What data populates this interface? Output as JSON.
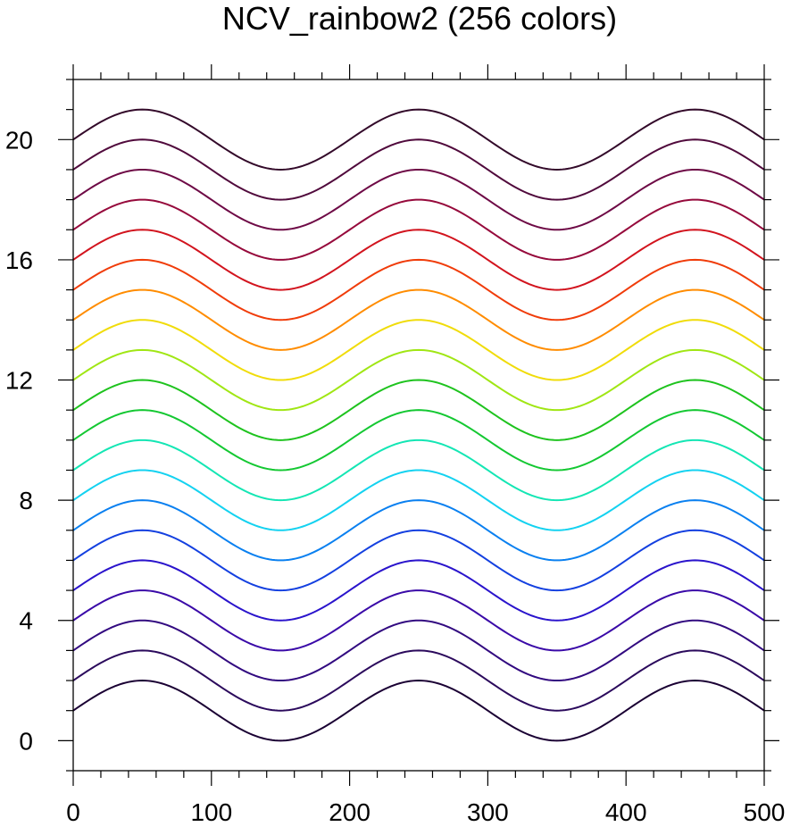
{
  "chart_data": {
    "type": "line",
    "title": "NCV_rainbow2 (256 colors)",
    "xlabel": "",
    "ylabel": "",
    "xlim": [
      0,
      500
    ],
    "ylim": [
      -1,
      22
    ],
    "x_major_ticks": [
      0,
      100,
      200,
      300,
      400,
      500
    ],
    "x_tick_labels": [
      "0",
      "100",
      "200",
      "300",
      "400",
      "500"
    ],
    "x_minor_step": 20,
    "y_major_ticks": [
      0,
      4,
      8,
      12,
      16,
      20
    ],
    "y_tick_labels": [
      "0",
      "4",
      "8",
      "12",
      "16",
      "20"
    ],
    "y_minor_step": 1,
    "grid": false,
    "curve_formula": "y = offset + sin(2*pi*x/200)",
    "x_sample": [
      0,
      25,
      50,
      75,
      100,
      125,
      150,
      175,
      200,
      225,
      250,
      275,
      300,
      325,
      350,
      375,
      400,
      425,
      450,
      475,
      500
    ],
    "series": [
      {
        "offset": 1,
        "color": "#1a0033",
        "values": [
          1,
          1.71,
          2,
          1.71,
          1,
          0.29,
          0,
          0.29,
          1,
          1.71,
          2,
          1.71,
          1,
          0.29,
          0,
          0.29,
          1,
          1.71,
          2,
          1.71,
          1
        ]
      },
      {
        "offset": 2,
        "color": "#2b0a5c",
        "values": [
          2,
          2.71,
          3,
          2.71,
          2,
          1.29,
          1,
          1.29,
          2,
          2.71,
          3,
          2.71,
          2,
          1.29,
          1,
          1.29,
          2,
          2.71,
          3,
          2.71,
          2
        ]
      },
      {
        "offset": 3,
        "color": "#320a80",
        "values": [
          3,
          3.71,
          4,
          3.71,
          3,
          2.29,
          2,
          2.29,
          3,
          3.71,
          4,
          3.71,
          3,
          2.29,
          2,
          2.29,
          3,
          3.71,
          4,
          3.71,
          3
        ]
      },
      {
        "offset": 4,
        "color": "#3a0aa8",
        "values": [
          4,
          4.71,
          5,
          4.71,
          4,
          3.29,
          3,
          3.29,
          4,
          4.71,
          5,
          4.71,
          4,
          3.29,
          3,
          3.29,
          4,
          4.71,
          5,
          4.71,
          4
        ]
      },
      {
        "offset": 5,
        "color": "#2a14cc",
        "values": [
          5,
          5.71,
          6,
          5.71,
          5,
          4.29,
          4,
          4.29,
          5,
          5.71,
          6,
          5.71,
          5,
          4.29,
          4,
          4.29,
          5,
          5.71,
          6,
          5.71,
          5
        ]
      },
      {
        "offset": 6,
        "color": "#1440e0",
        "values": [
          6,
          6.71,
          7,
          6.71,
          6,
          5.29,
          5,
          5.29,
          6,
          6.71,
          7,
          6.71,
          6,
          5.29,
          5,
          5.29,
          6,
          6.71,
          7,
          6.71,
          6
        ]
      },
      {
        "offset": 7,
        "color": "#0a80f0",
        "values": [
          7,
          7.71,
          8,
          7.71,
          7,
          6.29,
          6,
          6.29,
          7,
          7.71,
          8,
          7.71,
          7,
          6.29,
          6,
          6.29,
          7,
          7.71,
          8,
          7.71,
          7
        ]
      },
      {
        "offset": 8,
        "color": "#14d2f0",
        "values": [
          8,
          8.71,
          9,
          8.71,
          8,
          7.29,
          7,
          7.29,
          8,
          8.71,
          9,
          8.71,
          8,
          7.29,
          7,
          7.29,
          8,
          8.71,
          9,
          8.71,
          8
        ]
      },
      {
        "offset": 9,
        "color": "#14e6b4",
        "values": [
          9,
          9.71,
          10,
          9.71,
          9,
          8.29,
          8,
          8.29,
          9,
          9.71,
          10,
          9.71,
          9,
          8.29,
          8,
          8.29,
          9,
          9.71,
          10,
          9.71,
          9
        ]
      },
      {
        "offset": 10,
        "color": "#14c832",
        "values": [
          10,
          10.71,
          11,
          10.71,
          10,
          9.29,
          9,
          9.29,
          10,
          10.71,
          11,
          10.71,
          10,
          9.29,
          9,
          9.29,
          10,
          10.71,
          11,
          10.71,
          10
        ]
      },
      {
        "offset": 11,
        "color": "#1ec31e",
        "values": [
          11,
          11.71,
          12,
          11.71,
          11,
          10.29,
          10,
          10.29,
          11,
          11.71,
          12,
          11.71,
          11,
          10.29,
          10,
          10.29,
          11,
          11.71,
          12,
          11.71,
          11
        ]
      },
      {
        "offset": 12,
        "color": "#a0e614",
        "values": [
          12,
          12.71,
          13,
          12.71,
          12,
          11.29,
          11,
          11.29,
          12,
          12.71,
          13,
          12.71,
          12,
          11.29,
          11,
          11.29,
          12,
          12.71,
          13,
          12.71,
          12
        ]
      },
      {
        "offset": 13,
        "color": "#f0dc0a",
        "values": [
          13,
          13.71,
          14,
          13.71,
          13,
          12.29,
          12,
          12.29,
          13,
          13.71,
          14,
          13.71,
          13,
          12.29,
          12,
          12.29,
          13,
          13.71,
          14,
          13.71,
          13
        ]
      },
      {
        "offset": 14,
        "color": "#ff8c00",
        "values": [
          14,
          14.71,
          15,
          14.71,
          14,
          13.29,
          13,
          13.29,
          14,
          14.71,
          15,
          14.71,
          14,
          13.29,
          13,
          13.29,
          14,
          14.71,
          15,
          14.71,
          14
        ]
      },
      {
        "offset": 15,
        "color": "#f03c0a",
        "values": [
          15,
          15.71,
          16,
          15.71,
          15,
          14.29,
          14,
          14.29,
          15,
          15.71,
          16,
          15.71,
          15,
          14.29,
          14,
          14.29,
          15,
          15.71,
          16,
          15.71,
          15
        ]
      },
      {
        "offset": 16,
        "color": "#d2141e",
        "values": [
          16,
          16.71,
          17,
          16.71,
          16,
          15.29,
          15,
          15.29,
          16,
          16.71,
          17,
          16.71,
          16,
          15.29,
          15,
          15.29,
          16,
          16.71,
          17,
          16.71,
          16
        ]
      },
      {
        "offset": 17,
        "color": "#960a3c",
        "values": [
          17,
          17.71,
          18,
          17.71,
          17,
          16.29,
          16,
          16.29,
          17,
          17.71,
          18,
          17.71,
          17,
          16.29,
          16,
          16.29,
          17,
          17.71,
          18,
          17.71,
          17
        ]
      },
      {
        "offset": 18,
        "color": "#6e0a46",
        "values": [
          18,
          18.71,
          19,
          18.71,
          18,
          17.29,
          17,
          17.29,
          18,
          18.71,
          19,
          18.71,
          18,
          17.29,
          17,
          17.29,
          18,
          18.71,
          19,
          18.71,
          18
        ]
      },
      {
        "offset": 19,
        "color": "#500a3c",
        "values": [
          19,
          19.71,
          20,
          19.71,
          19,
          18.29,
          18,
          18.29,
          19,
          19.71,
          20,
          19.71,
          19,
          18.29,
          18,
          18.29,
          19,
          19.71,
          20,
          19.71,
          19
        ]
      },
      {
        "offset": 20,
        "color": "#330a2a",
        "values": [
          20,
          20.71,
          21,
          20.71,
          20,
          19.29,
          19,
          19.29,
          20,
          20.71,
          21,
          20.71,
          20,
          19.29,
          19,
          19.29,
          20,
          20.71,
          21,
          20.71,
          20
        ]
      }
    ]
  }
}
